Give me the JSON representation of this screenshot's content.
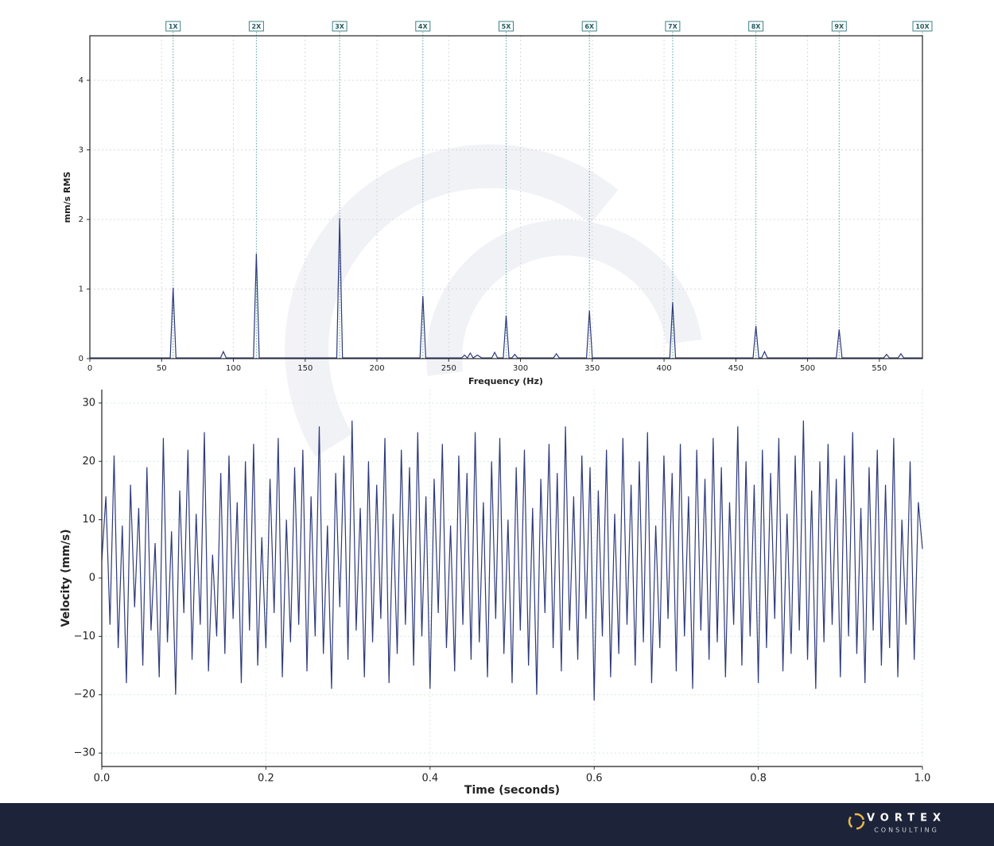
{
  "chart_data": [
    {
      "type": "line",
      "xlabel": "Frequency (Hz)",
      "ylabel": "mm/s RMS",
      "x": [
        0,
        56,
        58,
        60,
        91,
        93,
        95,
        114,
        116,
        118,
        172,
        174,
        176,
        230,
        232,
        234,
        259,
        261,
        263,
        265,
        267,
        270,
        273,
        280,
        282,
        284,
        288,
        290,
        292,
        294,
        296,
        298,
        323,
        325,
        327,
        346,
        348,
        350,
        404,
        406,
        408,
        462,
        464,
        466,
        468,
        470,
        472,
        520,
        522,
        524,
        553,
        555,
        557,
        563,
        565,
        567,
        580
      ],
      "series": [
        {
          "color": "#2e3a7a",
          "values": [
            0.01,
            0.01,
            1.02,
            0.01,
            0.01,
            0.1,
            0.01,
            0.01,
            1.51,
            0.01,
            0.01,
            2.02,
            0.01,
            0.01,
            0.9,
            0.01,
            0.01,
            0.05,
            0.01,
            0.08,
            0.01,
            0.05,
            0.01,
            0.01,
            0.09,
            0.01,
            0.01,
            0.62,
            0.01,
            0.01,
            0.06,
            0.01,
            0.01,
            0.07,
            0.01,
            0.01,
            0.69,
            0.01,
            0.01,
            0.81,
            0.01,
            0.01,
            0.47,
            0.01,
            0.01,
            0.1,
            0.01,
            0.01,
            0.42,
            0.01,
            0.01,
            0.06,
            0.01,
            0.01,
            0.07,
            0.01,
            0.01
          ]
        }
      ],
      "xlim": [
        0,
        580
      ],
      "ylim": [
        0,
        4.64
      ],
      "xticks": [
        0,
        50,
        100,
        150,
        200,
        250,
        300,
        350,
        400,
        450,
        500,
        550
      ],
      "yticks": [
        0,
        1,
        2,
        3,
        4
      ],
      "grid": true,
      "frame": "box",
      "harmonics": [
        {
          "value": 58,
          "label": "1X"
        },
        {
          "value": 116,
          "label": "2X"
        },
        {
          "value": 174,
          "label": "3X"
        },
        {
          "value": 232,
          "label": "4X"
        },
        {
          "value": 290,
          "label": "5X"
        },
        {
          "value": 348,
          "label": "6X"
        },
        {
          "value": 406,
          "label": "7X"
        },
        {
          "value": 464,
          "label": "8X"
        },
        {
          "value": 522,
          "label": "9X"
        },
        {
          "value": 580,
          "label": "10X"
        }
      ]
    },
    {
      "type": "line",
      "xlabel": "Time (seconds)",
      "ylabel": "Velocity (mm/s)",
      "x": [
        0,
        0.005,
        0.01,
        0.015,
        0.02,
        0.025,
        0.03,
        0.035,
        0.04,
        0.045,
        0.05,
        0.055,
        0.06,
        0.065,
        0.07,
        0.075,
        0.08,
        0.085,
        0.09,
        0.095,
        0.1,
        0.105,
        0.11,
        0.115,
        0.12,
        0.125,
        0.13,
        0.135,
        0.14,
        0.145,
        0.15,
        0.155,
        0.16,
        0.165,
        0.17,
        0.175,
        0.18,
        0.185,
        0.19,
        0.195,
        0.2,
        0.205,
        0.21,
        0.215,
        0.22,
        0.225,
        0.23,
        0.235,
        0.24,
        0.245,
        0.25,
        0.255,
        0.26,
        0.265,
        0.27,
        0.275,
        0.28,
        0.285,
        0.29,
        0.295,
        0.3,
        0.305,
        0.31,
        0.315,
        0.32,
        0.325,
        0.33,
        0.335,
        0.34,
        0.345,
        0.35,
        0.355,
        0.36,
        0.365,
        0.37,
        0.375,
        0.38,
        0.385,
        0.39,
        0.395,
        0.4,
        0.405,
        0.41,
        0.415,
        0.42,
        0.425,
        0.43,
        0.435,
        0.44,
        0.445,
        0.45,
        0.455,
        0.46,
        0.465,
        0.47,
        0.475,
        0.48,
        0.485,
        0.49,
        0.495,
        0.5,
        0.505,
        0.51,
        0.515,
        0.52,
        0.525,
        0.53,
        0.535,
        0.54,
        0.545,
        0.55,
        0.555,
        0.56,
        0.565,
        0.57,
        0.575,
        0.58,
        0.585,
        0.59,
        0.595,
        0.6,
        0.605,
        0.61,
        0.615,
        0.62,
        0.625,
        0.63,
        0.635,
        0.64,
        0.645,
        0.65,
        0.655,
        0.66,
        0.665,
        0.67,
        0.675,
        0.68,
        0.685,
        0.69,
        0.695,
        0.7,
        0.705,
        0.71,
        0.715,
        0.72,
        0.725,
        0.73,
        0.735,
        0.74,
        0.745,
        0.75,
        0.755,
        0.76,
        0.765,
        0.77,
        0.775,
        0.78,
        0.785,
        0.79,
        0.795,
        0.8,
        0.805,
        0.81,
        0.815,
        0.82,
        0.825,
        0.83,
        0.835,
        0.84,
        0.845,
        0.85,
        0.855,
        0.86,
        0.865,
        0.87,
        0.875,
        0.88,
        0.885,
        0.89,
        0.895,
        0.9,
        0.905,
        0.91,
        0.915,
        0.92,
        0.925,
        0.93,
        0.935,
        0.94,
        0.945,
        0.95,
        0.955,
        0.96,
        0.965,
        0.97,
        0.975,
        0.98,
        0.985,
        0.99,
        0.995,
        1
      ],
      "series": [
        {
          "color": "#2e3a7a",
          "values": [
            3,
            14,
            -8,
            21,
            -12,
            9,
            -18,
            16,
            -5,
            12,
            -15,
            19,
            -9,
            6,
            -17,
            24,
            -11,
            8,
            -20,
            15,
            -6,
            22,
            -14,
            11,
            -8,
            25,
            -16,
            4,
            -10,
            18,
            -13,
            21,
            -7,
            13,
            -18,
            20,
            -9,
            23,
            -15,
            7,
            -12,
            17,
            -6,
            24,
            -17,
            10,
            -11,
            19,
            -8,
            22,
            -16,
            14,
            -10,
            26,
            -13,
            9,
            -19,
            18,
            -5,
            21,
            -14,
            27,
            -9,
            12,
            -17,
            20,
            -11,
            16,
            -7,
            24,
            -18,
            11,
            -13,
            22,
            -8,
            19,
            -15,
            25,
            -10,
            14,
            -19,
            17,
            -6,
            23,
            -12,
            9,
            -16,
            21,
            -8,
            18,
            -14,
            25,
            -11,
            13,
            -17,
            20,
            -7,
            24,
            -13,
            10,
            -18,
            19,
            -9,
            22,
            -15,
            12,
            -20,
            17,
            -6,
            23,
            -12,
            18,
            -16,
            26,
            -9,
            14,
            -14,
            21,
            -7,
            19,
            -21,
            15,
            -10,
            22,
            -17,
            11,
            -13,
            24,
            -8,
            16,
            -15,
            20,
            -11,
            25,
            -18,
            9,
            -12,
            21,
            -7,
            18,
            -16,
            23,
            -10,
            14,
            -19,
            22,
            -9,
            17,
            -14,
            24,
            -11,
            19,
            -17,
            13,
            -8,
            26,
            -15,
            20,
            -10,
            16,
            -18,
            22,
            -12,
            18,
            -7,
            24,
            -16,
            11,
            -13,
            21,
            -9,
            27,
            -14,
            15,
            -19,
            20,
            -11,
            23,
            -8,
            17,
            -17,
            21,
            -10,
            25,
            -13,
            12,
            -18,
            19,
            -9,
            22,
            -15,
            16,
            -12,
            24,
            -17,
            10,
            -8,
            20,
            -14,
            13,
            5
          ]
        }
      ],
      "xlim": [
        0,
        1
      ],
      "ylim": [
        -32.3,
        32.3
      ],
      "xticks": [
        {
          "value": 0,
          "label": "0.0"
        },
        0.2,
        0.4,
        0.6,
        0.8,
        {
          "value": 1,
          "label": "1.0"
        }
      ],
      "yticks": [
        {
          "value": -30,
          "label": "−30"
        },
        {
          "value": -20,
          "label": "−20"
        },
        {
          "value": -10,
          "label": "−10"
        },
        0,
        10,
        20,
        30
      ],
      "grid": true,
      "frame": "open"
    }
  ],
  "footer": {
    "brand": "VORTEX",
    "tagline": "CONSULTING"
  }
}
